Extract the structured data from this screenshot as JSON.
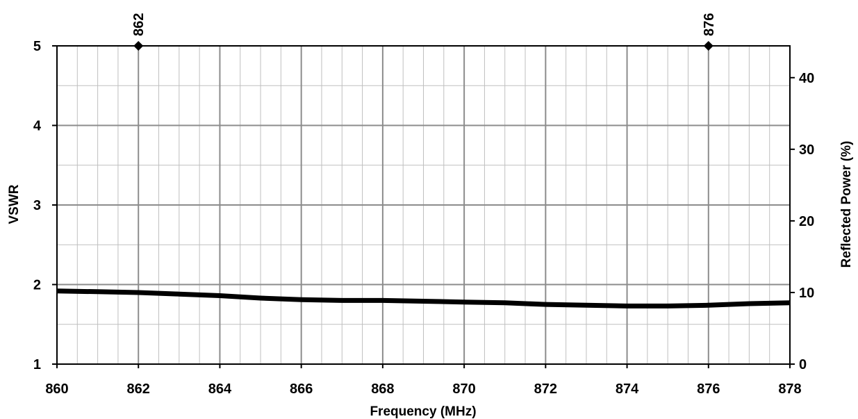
{
  "chart_data": {
    "type": "line",
    "xlabel": "Frequency (MHz)",
    "ylabel": "VSWR",
    "y2label": "Reflected Power (%)",
    "xlim": [
      860,
      878
    ],
    "ylim": [
      1,
      5
    ],
    "y2lim": [
      0,
      44.44
    ],
    "x_ticks": [
      "860",
      "862",
      "864",
      "866",
      "868",
      "870",
      "872",
      "874",
      "876",
      "878"
    ],
    "y_ticks": [
      "1",
      "2",
      "3",
      "4",
      "5"
    ],
    "y2_ticks": [
      "0",
      "10",
      "20",
      "30",
      "40"
    ],
    "x_minor_step": 0.5,
    "y_minor_step": 0.5,
    "grid": true,
    "markers": [
      {
        "label": "862",
        "x": 862
      },
      {
        "label": "876",
        "x": 876
      }
    ],
    "series": [
      {
        "color": "#000000",
        "x": [
          860,
          861,
          862,
          863,
          864,
          865,
          866,
          867,
          868,
          869,
          870,
          871,
          872,
          873,
          874,
          875,
          876,
          877,
          878
        ],
        "y": [
          1.92,
          1.91,
          1.9,
          1.88,
          1.86,
          1.83,
          1.81,
          1.8,
          1.8,
          1.79,
          1.78,
          1.77,
          1.75,
          1.74,
          1.73,
          1.73,
          1.74,
          1.76,
          1.77
        ]
      }
    ]
  }
}
